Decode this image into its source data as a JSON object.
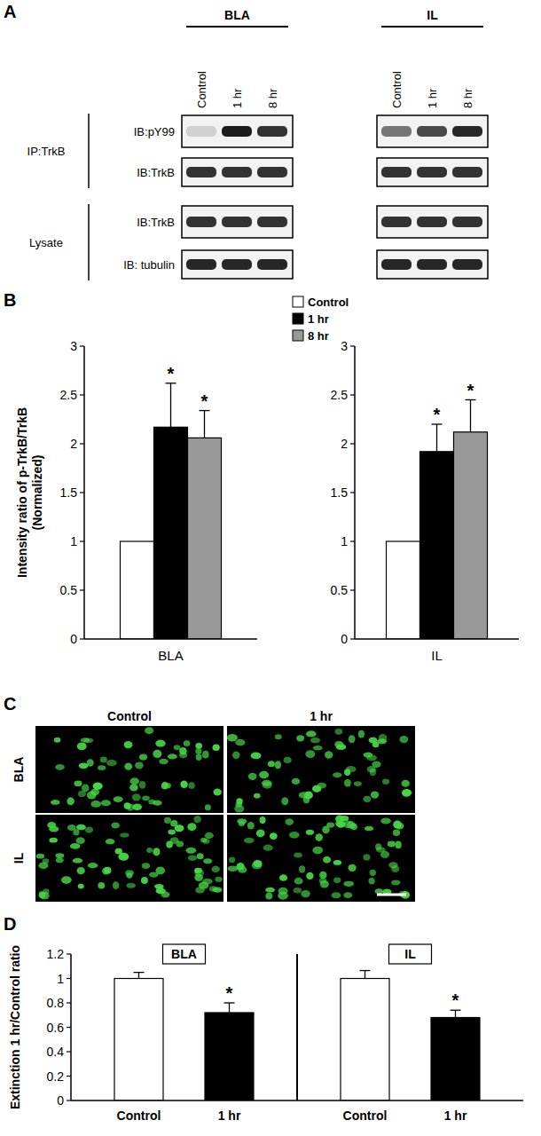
{
  "panel_labels": [
    "A",
    "B",
    "C",
    "D"
  ],
  "blot": {
    "regions": [
      {
        "name": "BLA",
        "lanes": [
          "Control",
          "1 hr",
          "8 hr"
        ],
        "band_intensity": [
          [
            0.15,
            0.95,
            0.85
          ],
          [
            0.85,
            0.85,
            0.85
          ],
          [
            0.85,
            0.85,
            0.85
          ],
          [
            0.9,
            0.9,
            0.9
          ]
        ]
      },
      {
        "name": "IL",
        "lanes": [
          "Control",
          "1 hr",
          "8 hr"
        ],
        "band_intensity": [
          [
            0.55,
            0.75,
            0.9
          ],
          [
            0.85,
            0.85,
            0.85
          ],
          [
            0.85,
            0.85,
            0.85
          ],
          [
            0.9,
            0.9,
            0.9
          ]
        ]
      }
    ],
    "groups": [
      {
        "label": "IP:TrkB",
        "rows": [
          "IB:pY99",
          "IB:TrkB"
        ]
      },
      {
        "label": "Lysate",
        "rows": [
          "IB:TrkB",
          "IB: tubulin"
        ]
      }
    ]
  },
  "chart_data": [
    {
      "type": "bar",
      "categories": [
        "BLA"
      ],
      "ylabel": [
        "Intensity ratio of p-TrkB/TrkB",
        "(Normalized)"
      ],
      "ylim": [
        0,
        3
      ],
      "yticks": [
        0,
        0.5,
        1,
        1.5,
        2,
        2.5,
        3
      ],
      "legend": "top-right",
      "series": [
        {
          "name": "Control",
          "color": "#ffffff",
          "values": [
            1
          ]
        },
        {
          "name": "1 hr",
          "color": "#000000",
          "values": [
            2.17
          ],
          "errors": [
            0.45
          ],
          "annotation": "*"
        },
        {
          "name": "8 hr",
          "color": "#999999",
          "values": [
            2.06
          ],
          "errors": [
            0.28
          ],
          "annotation": "*"
        }
      ]
    },
    {
      "type": "bar",
      "categories": [
        "IL"
      ],
      "ylim": [
        0,
        3
      ],
      "yticks": [
        0,
        0.5,
        1,
        1.5,
        2,
        2.5,
        3
      ],
      "series": [
        {
          "color": "#ffffff",
          "values": [
            1
          ]
        },
        {
          "color": "#000000",
          "values": [
            1.92
          ],
          "errors": [
            0.28
          ],
          "annotation": "*"
        },
        {
          "color": "#999999",
          "values": [
            2.12
          ],
          "errors": [
            0.33
          ],
          "annotation": "*"
        }
      ]
    },
    {
      "type": "bar",
      "ylabel": "Extinction 1 hr/Control ratio",
      "group_labels": [
        "BLA",
        "IL"
      ],
      "categories": [
        "Control",
        "1 hr",
        "Control",
        "1 hr"
      ],
      "values": [
        1,
        0.72,
        1,
        0.68
      ],
      "errors": [
        0.05,
        0.08,
        0.065,
        0.06
      ],
      "colors": [
        "#ffffff",
        "#000000",
        "#ffffff",
        "#000000"
      ],
      "annotations": [
        null,
        "*",
        null,
        "*"
      ],
      "ylim": [
        0,
        1.2
      ],
      "yticks": [
        0,
        0.2,
        0.4,
        0.6,
        0.8,
        1,
        1.2
      ]
    }
  ],
  "micrographs": {
    "columns": [
      "Control",
      "1 hr"
    ],
    "rows": [
      "BLA",
      "IL"
    ]
  }
}
